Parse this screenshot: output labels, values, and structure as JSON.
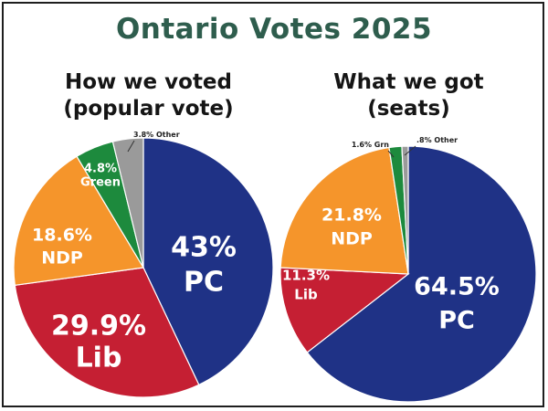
{
  "title": "Ontario Votes 2025",
  "colors": {
    "PC": "#1f3286",
    "Lib": "#c51f33",
    "NDP": "#f5952b",
    "Green": "#1d8a3d",
    "Other": "#9a9a9a",
    "title": "#2e5d4d"
  },
  "chart_data": [
    {
      "type": "pie",
      "title": "How we voted",
      "subtitle": "(popular vote)",
      "slices": [
        {
          "key": "PC",
          "value": 43,
          "pct_label": "43%",
          "name_label": "PC"
        },
        {
          "key": "Lib",
          "value": 29.9,
          "pct_label": "29.9%",
          "name_label": "Lib"
        },
        {
          "key": "NDP",
          "value": 18.6,
          "pct_label": "18.6%",
          "name_label": "NDP"
        },
        {
          "key": "Green",
          "value": 4.8,
          "pct_label": "4.8%",
          "name_label": "Green"
        },
        {
          "key": "Other",
          "value": 3.8,
          "pct_label": "3.8% Other",
          "name_label": ""
        }
      ]
    },
    {
      "type": "pie",
      "title": "What we got",
      "subtitle": "(seats)",
      "slices": [
        {
          "key": "PC",
          "value": 64.5,
          "pct_label": "64.5%",
          "name_label": "PC"
        },
        {
          "key": "Lib",
          "value": 11.3,
          "pct_label": "11.3%",
          "name_label": "Lib"
        },
        {
          "key": "NDP",
          "value": 21.8,
          "pct_label": "21.8%",
          "name_label": "NDP"
        },
        {
          "key": "Green",
          "value": 1.6,
          "pct_label": "1.6% Grn",
          "name_label": ""
        },
        {
          "key": "Other",
          "value": 0.8,
          "pct_label": ".8% Other",
          "name_label": ""
        }
      ]
    }
  ]
}
